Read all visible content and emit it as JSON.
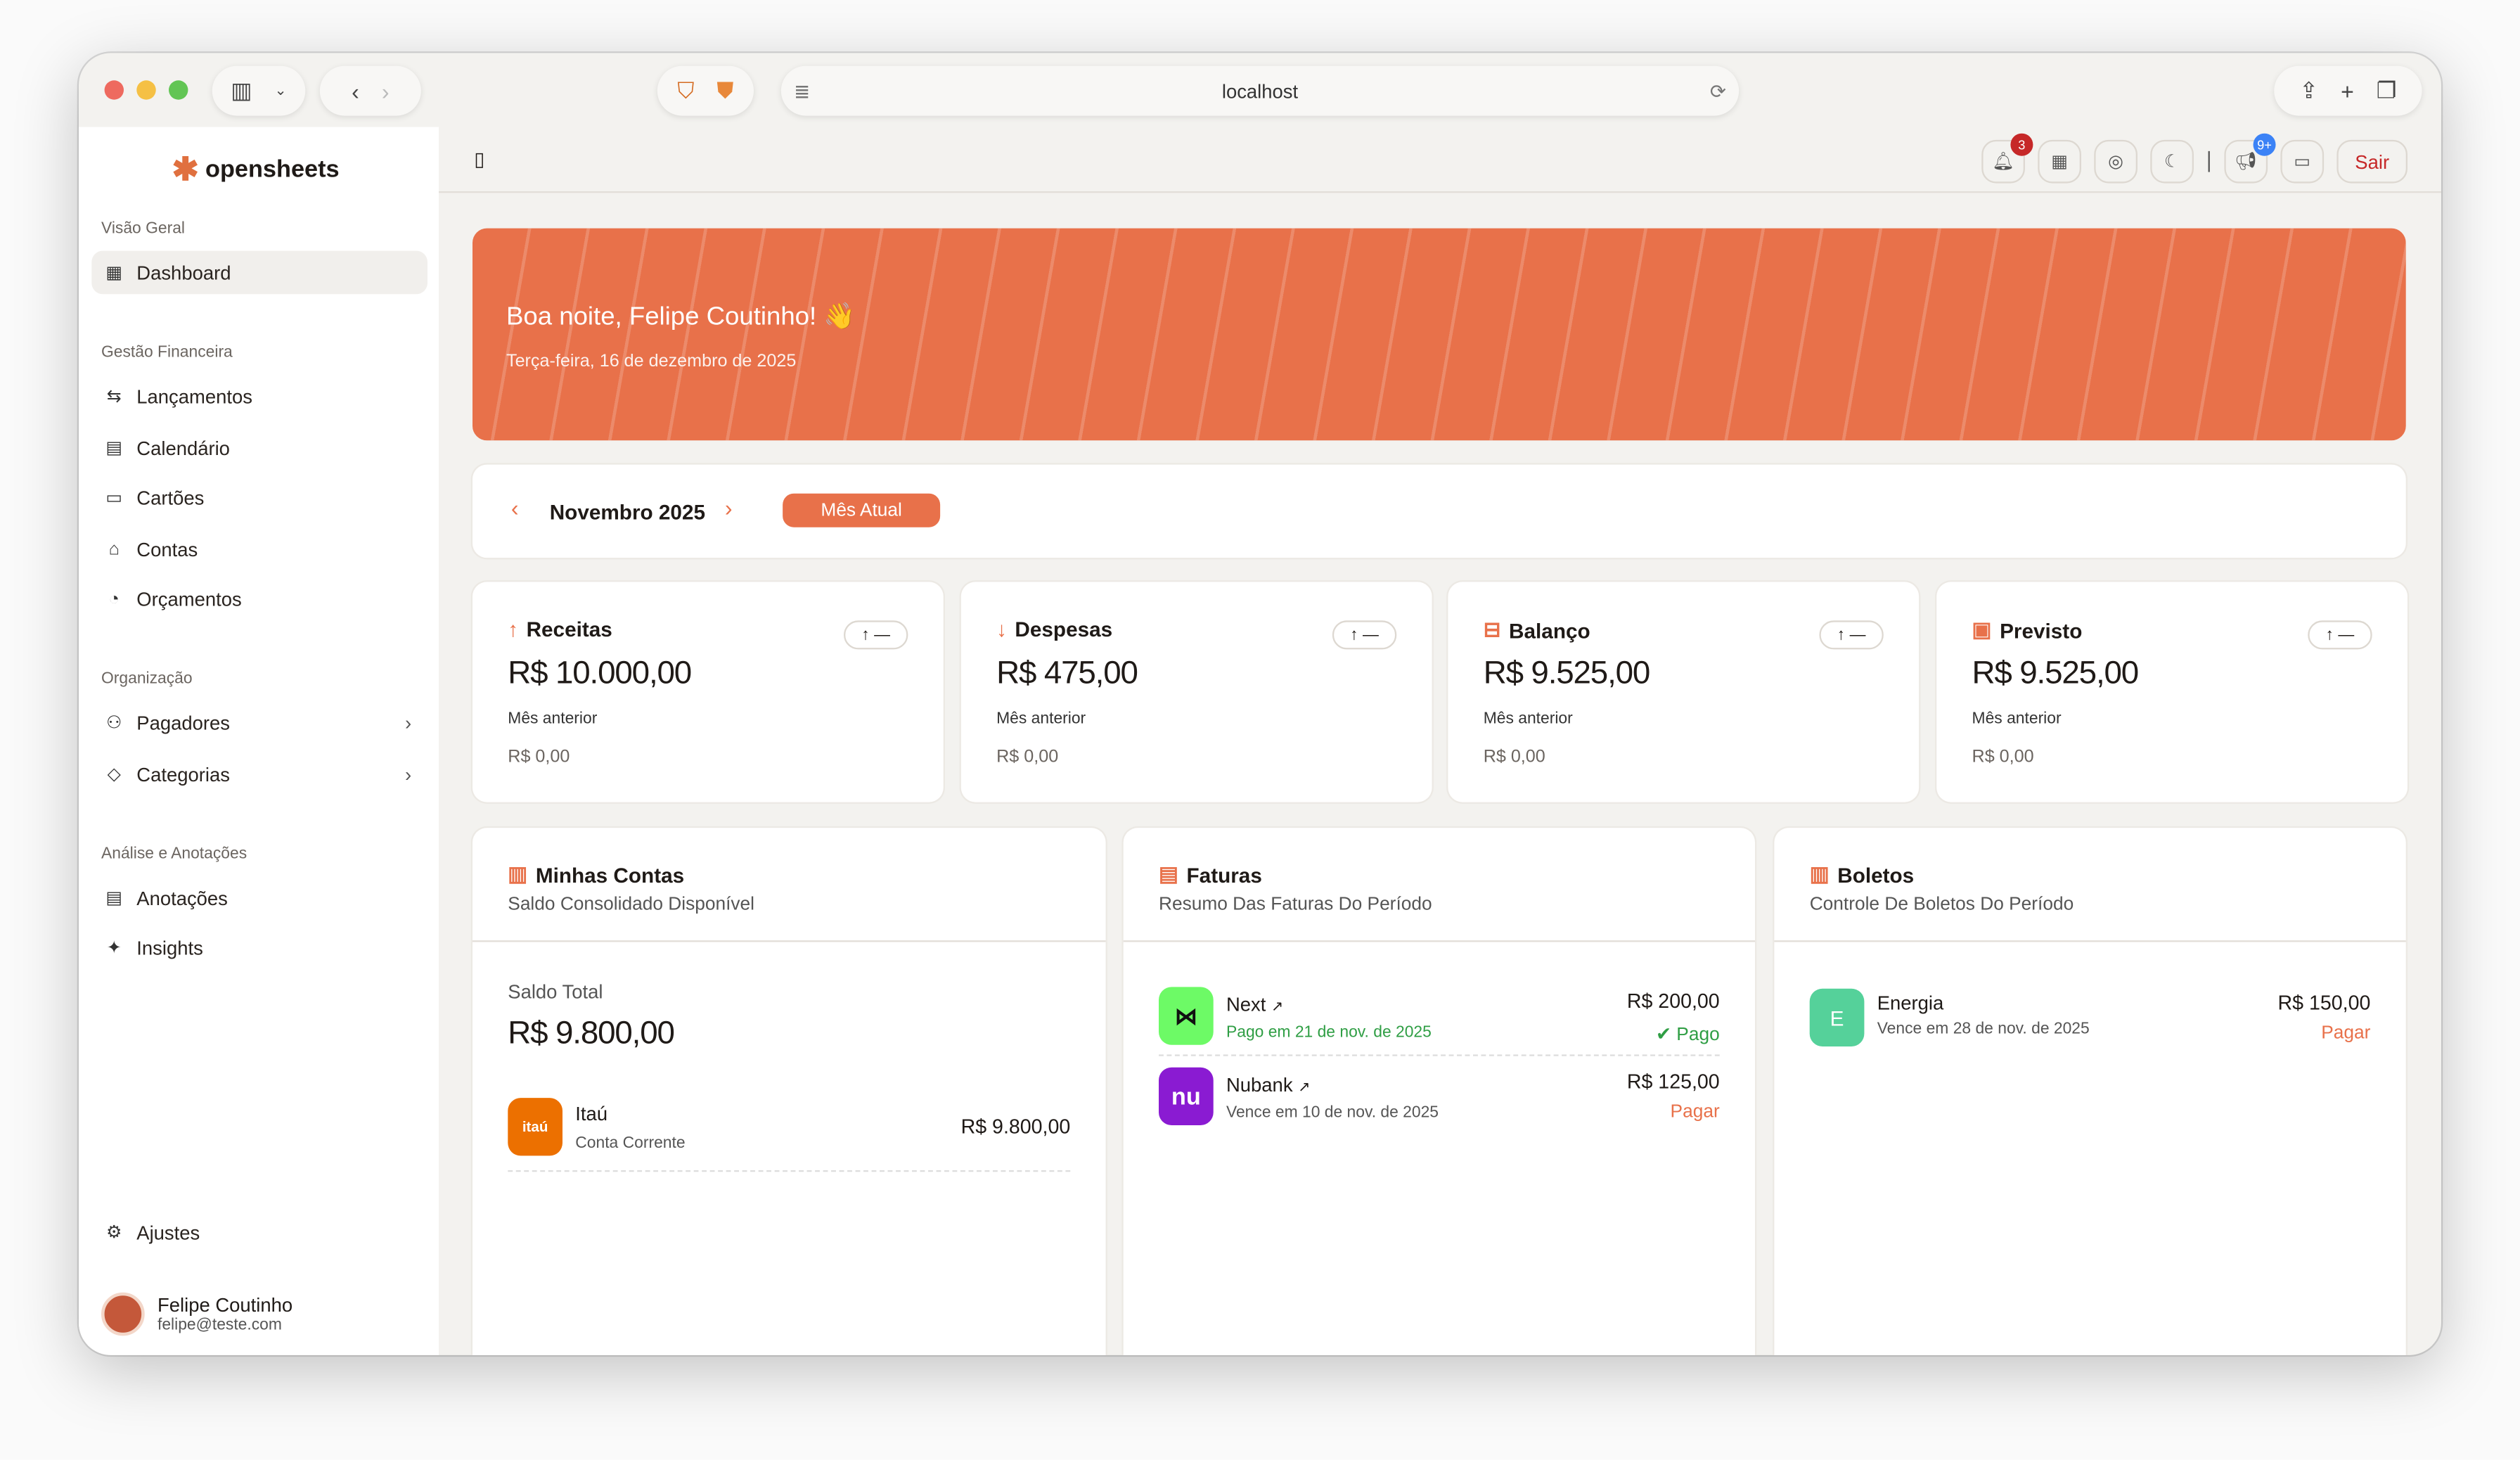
{
  "browser": {
    "url": "localhost"
  },
  "app": {
    "name": "opensheets"
  },
  "sidebar": {
    "sections": [
      {
        "title": "Visão Geral",
        "items": [
          {
            "label": "Dashboard",
            "icon": "grid-icon"
          }
        ]
      },
      {
        "title": "Gestão Financeira",
        "items": [
          {
            "label": "Lançamentos"
          },
          {
            "label": "Calendário"
          },
          {
            "label": "Cartões"
          },
          {
            "label": "Contas"
          },
          {
            "label": "Orçamentos"
          }
        ]
      },
      {
        "title": "Organização",
        "items": [
          {
            "label": "Pagadores"
          },
          {
            "label": "Categorias"
          }
        ]
      },
      {
        "title": "Análise e Anotações",
        "items": [
          {
            "label": "Anotações"
          },
          {
            "label": "Insights"
          }
        ]
      }
    ],
    "settings": "Ajustes",
    "user": {
      "name": "Felipe Coutinho",
      "email": "felipe@teste.com"
    }
  },
  "header": {
    "notifications_count": "3",
    "announcements_count": "9+",
    "logout": "Sair"
  },
  "banner": {
    "greeting": "Boa noite, Felipe Coutinho! 👋",
    "date": "Terça-feira, 16 de dezembro de 2025"
  },
  "period": {
    "label": "Novembro 2025",
    "current_button": "Mês Atual"
  },
  "stats": [
    {
      "title": "Receitas",
      "value": "R$ 10.000,00",
      "prev_label": "Mês anterior",
      "prev_value": "R$ 0,00",
      "trend": "↑ —"
    },
    {
      "title": "Despesas",
      "value": "R$ 475,00",
      "prev_label": "Mês anterior",
      "prev_value": "R$ 0,00",
      "trend": "↑ —"
    },
    {
      "title": "Balanço",
      "value": "R$ 9.525,00",
      "prev_label": "Mês anterior",
      "prev_value": "R$ 0,00",
      "trend": "↑ —"
    },
    {
      "title": "Previsto",
      "value": "R$ 9.525,00",
      "prev_label": "Mês anterior",
      "prev_value": "R$ 0,00",
      "trend": "↑ —"
    }
  ],
  "accounts": {
    "title": "Minhas Contas",
    "subtitle": "Saldo Consolidado Disponível",
    "total_label": "Saldo Total",
    "total": "R$ 9.800,00",
    "items": [
      {
        "name": "Itaú",
        "type": "Conta Corrente",
        "value": "R$ 9.800,00",
        "logo": "itaú"
      }
    ]
  },
  "invoices": {
    "title": "Faturas",
    "subtitle": "Resumo Das Faturas Do Período",
    "items": [
      {
        "name": "Next",
        "detail": "Pago em 21 de nov. de 2025",
        "value": "R$ 200,00",
        "status": "Pago"
      },
      {
        "name": "Nubank",
        "detail": "Vence em 10 de nov. de 2025",
        "value": "R$ 125,00",
        "status": "Pagar",
        "logo": "nu"
      }
    ]
  },
  "bills": {
    "title": "Boletos",
    "subtitle": "Controle De Boletos Do Período",
    "items": [
      {
        "name": "Energia",
        "initial": "E",
        "detail": "Vence em 28 de nov. de 2025",
        "value": "R$ 150,00",
        "status": "Pagar"
      }
    ]
  },
  "colors": {
    "accent": "#e8714a",
    "paid": "#2f9e44",
    "logout": "#c62828",
    "badge_blue": "#3b82f6"
  }
}
